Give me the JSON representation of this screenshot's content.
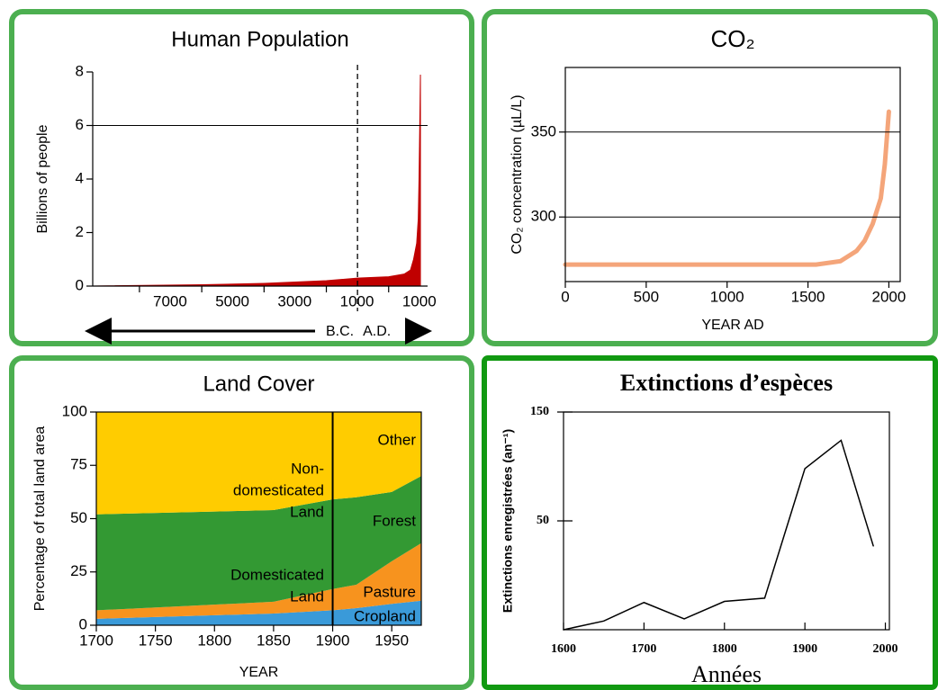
{
  "chart_data": [
    {
      "type": "area",
      "title": "Human Population",
      "ylabel": "Billions of people",
      "x": [
        -8500,
        -8000,
        -5000,
        -3000,
        -1000,
        0,
        1000,
        1500,
        1700,
        1800,
        1900,
        1950,
        1975,
        2000,
        2010,
        2020
      ],
      "values": [
        0,
        0.01,
        0.05,
        0.1,
        0.2,
        0.3,
        0.35,
        0.45,
        0.6,
        1,
        1.6,
        2.5,
        4,
        6.1,
        7,
        7.9
      ],
      "color": "#c00000",
      "xlim": [
        -8500,
        2250
      ],
      "ylim": [
        0,
        8
      ],
      "xticks": [
        {
          "value": -7000,
          "label": "7000"
        },
        {
          "value": -5000,
          "label": "5000"
        },
        {
          "value": -3000,
          "label": "3000"
        },
        {
          "value": -1000,
          "label": "1000"
        },
        1000
      ],
      "yticks": [
        0,
        2,
        4,
        6,
        8
      ],
      "hline": 6,
      "vline": 0,
      "annotations": [
        "B.C.",
        "A.D."
      ]
    },
    {
      "type": "line",
      "title": "CO₂",
      "ylabel": "CO₂ concentration (µL/L)",
      "xlabel": "YEAR AD",
      "x": [
        0,
        500,
        1000,
        1550,
        1700,
        1800,
        1850,
        1900,
        1950,
        1975,
        2000
      ],
      "values": [
        272,
        272,
        272,
        272,
        274,
        280,
        286,
        296,
        311,
        331,
        362
      ],
      "color": "#f4a57a",
      "xlim": [
        0,
        2070
      ],
      "ylim": [
        262,
        388
      ],
      "xticks": [
        0,
        500,
        1000,
        1500,
        2000
      ],
      "yticks": [
        300,
        350
      ],
      "grid": true
    },
    {
      "type": "stacked_area",
      "title": "Land Cover",
      "ylabel": "Percentage of total land area",
      "xlabel": "YEAR",
      "x": [
        1700,
        1850,
        1900,
        1920,
        1950,
        1975
      ],
      "series": [
        {
          "name": "Cropland",
          "color": "#3a9ad9",
          "values": [
            3,
            5.5,
            7,
            8,
            10,
            11.5
          ]
        },
        {
          "name": "Pasture",
          "color": "#f7931e",
          "values": [
            4,
            5.5,
            10,
            11,
            20,
            27
          ]
        },
        {
          "name": "Forest",
          "color": "#339933",
          "values": [
            45,
            43,
            42,
            41,
            32.5,
            31.5
          ]
        },
        {
          "name": "Other",
          "color": "#ffcc00",
          "values": [
            48,
            46,
            41,
            40,
            37.5,
            30
          ]
        }
      ],
      "xlim": [
        1700,
        1975
      ],
      "ylim": [
        0,
        100
      ],
      "xticks": [
        1700,
        1750,
        1800,
        1850,
        1900,
        1950
      ],
      "yticks": [
        0,
        25,
        50,
        75,
        100
      ],
      "vline": 1900,
      "annotations": [
        [
          "Non-",
          "domesticated",
          "Land"
        ],
        [
          "Domesticated",
          "Land"
        ]
      ]
    },
    {
      "type": "line",
      "title": "Extinctions d’espèces",
      "ylabel": "Extinctions enregistrées (an⁻¹)",
      "xlabel": "Années",
      "x": [
        1600,
        1650,
        1700,
        1750,
        1800,
        1850,
        1900,
        1945,
        1985
      ],
      "values": [
        -50,
        -42,
        -25,
        -40,
        -24,
        -21,
        98,
        124,
        27
      ],
      "color": "#000000",
      "xlim": [
        1600,
        2005
      ],
      "ylim": [
        -50,
        150
      ],
      "xticks": [
        1600,
        1700,
        1800,
        1900,
        2000
      ],
      "yticks": [
        50,
        150
      ]
    }
  ]
}
